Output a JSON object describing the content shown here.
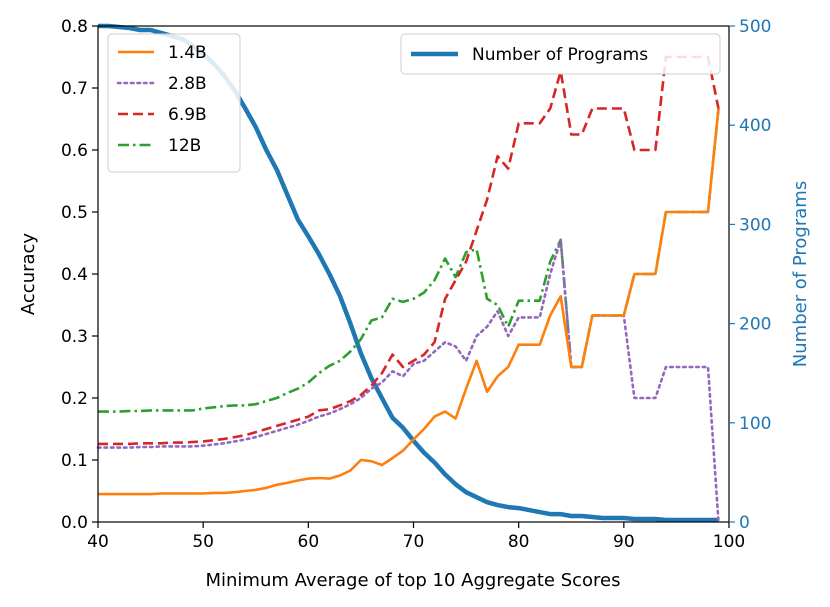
{
  "chart_data": {
    "type": "line",
    "xlabel": "Minimum Average of top 10 Aggregate Scores",
    "ylabel": "Accuracy",
    "y2label": "Number of Programs",
    "xlim": [
      40,
      100
    ],
    "ylim": [
      0,
      0.8
    ],
    "y2lim": [
      0,
      500
    ],
    "xticks": [
      "40",
      "50",
      "60",
      "70",
      "80",
      "90",
      "100"
    ],
    "yticks": [
      "0.0",
      "0.1",
      "0.2",
      "0.3",
      "0.4",
      "0.5",
      "0.6",
      "0.7",
      "0.8"
    ],
    "y2ticks": [
      "0",
      "100",
      "200",
      "300",
      "400",
      "500"
    ],
    "grid": false,
    "legend_left_placement": "top-left",
    "legend_right_placement": "top-right",
    "colors": {
      "s1_4b": "#ff7f0e",
      "s2_8b": "#9467bd",
      "s6_9b": "#d62728",
      "s12b": "#2ca02c",
      "programs": "#1f77b4",
      "right_axis": "#1f77b4"
    },
    "series": [
      {
        "name": "1.4B",
        "key": "s1_4b",
        "axis": "left",
        "style": "solid",
        "x": [
          40,
          41,
          42,
          43,
          44,
          45,
          46,
          47,
          48,
          49,
          50,
          51,
          52,
          53,
          54,
          55,
          56,
          57,
          58,
          59,
          60,
          61,
          62,
          63,
          64,
          65,
          66,
          67,
          68,
          69,
          70,
          71,
          72,
          73,
          74,
          75,
          76,
          77,
          78,
          79,
          80,
          81,
          82,
          83,
          84,
          85,
          86,
          87,
          88,
          89,
          90,
          91,
          92,
          93,
          94,
          95,
          96,
          97,
          98,
          99
        ],
        "values": [
          0.045,
          0.045,
          0.045,
          0.045,
          0.045,
          0.045,
          0.046,
          0.046,
          0.046,
          0.046,
          0.046,
          0.047,
          0.047,
          0.048,
          0.05,
          0.052,
          0.055,
          0.06,
          0.063,
          0.067,
          0.07,
          0.071,
          0.07,
          0.075,
          0.083,
          0.1,
          0.098,
          0.092,
          0.103,
          0.115,
          0.133,
          0.15,
          0.17,
          0.178,
          0.167,
          0.215,
          0.26,
          0.21,
          0.235,
          0.25,
          0.286,
          0.286,
          0.286,
          0.333,
          0.364,
          0.25,
          0.25,
          0.333,
          0.333,
          0.333,
          0.333,
          0.4,
          0.4,
          0.4,
          0.5,
          0.5,
          0.5,
          0.5,
          0.5,
          0.667
        ]
      },
      {
        "name": "2.8B",
        "key": "s2_8b",
        "axis": "left",
        "style": "dotted",
        "x": [
          40,
          41,
          42,
          43,
          44,
          45,
          46,
          47,
          48,
          49,
          50,
          51,
          52,
          53,
          54,
          55,
          56,
          57,
          58,
          59,
          60,
          61,
          62,
          63,
          64,
          65,
          66,
          67,
          68,
          69,
          70,
          71,
          72,
          73,
          74,
          75,
          76,
          77,
          78,
          79,
          80,
          81,
          82,
          83,
          84,
          85,
          86,
          87,
          88,
          89,
          90,
          91,
          92,
          93,
          94,
          95,
          96,
          97,
          98,
          99
        ],
        "values": [
          0.12,
          0.12,
          0.12,
          0.12,
          0.121,
          0.121,
          0.122,
          0.122,
          0.122,
          0.122,
          0.123,
          0.125,
          0.127,
          0.13,
          0.133,
          0.137,
          0.142,
          0.147,
          0.152,
          0.157,
          0.163,
          0.17,
          0.175,
          0.182,
          0.19,
          0.2,
          0.215,
          0.225,
          0.243,
          0.235,
          0.255,
          0.26,
          0.275,
          0.29,
          0.283,
          0.26,
          0.3,
          0.315,
          0.34,
          0.3,
          0.33,
          0.33,
          0.33,
          0.4,
          0.455,
          0.25,
          0.25,
          0.333,
          0.333,
          0.333,
          0.333,
          0.2,
          0.2,
          0.2,
          0.25,
          0.25,
          0.25,
          0.25,
          0.25,
          0.0
        ]
      },
      {
        "name": "6.9B",
        "key": "s6_9b",
        "axis": "left",
        "style": "dashed",
        "x": [
          40,
          41,
          42,
          43,
          44,
          45,
          46,
          47,
          48,
          49,
          50,
          51,
          52,
          53,
          54,
          55,
          56,
          57,
          58,
          59,
          60,
          61,
          62,
          63,
          64,
          65,
          66,
          67,
          68,
          69,
          70,
          71,
          72,
          73,
          74,
          75,
          76,
          77,
          78,
          79,
          80,
          81,
          82,
          83,
          84,
          85,
          86,
          87,
          88,
          89,
          90,
          91,
          92,
          93,
          94,
          95,
          96,
          97,
          98,
          99
        ],
        "values": [
          0.126,
          0.126,
          0.126,
          0.126,
          0.127,
          0.127,
          0.127,
          0.128,
          0.128,
          0.129,
          0.13,
          0.132,
          0.134,
          0.137,
          0.14,
          0.145,
          0.15,
          0.155,
          0.16,
          0.165,
          0.17,
          0.18,
          0.182,
          0.188,
          0.195,
          0.205,
          0.22,
          0.24,
          0.27,
          0.25,
          0.26,
          0.27,
          0.29,
          0.36,
          0.39,
          0.42,
          0.47,
          0.52,
          0.59,
          0.57,
          0.643,
          0.643,
          0.643,
          0.667,
          0.727,
          0.625,
          0.625,
          0.667,
          0.667,
          0.667,
          0.667,
          0.6,
          0.6,
          0.6,
          0.75,
          0.75,
          0.75,
          0.75,
          0.75,
          0.667
        ]
      },
      {
        "name": "12B",
        "key": "s12b",
        "axis": "left",
        "style": "dashdot",
        "x": [
          40,
          41,
          42,
          43,
          44,
          45,
          46,
          47,
          48,
          49,
          50,
          51,
          52,
          53,
          54,
          55,
          56,
          57,
          58,
          59,
          60,
          61,
          62,
          63,
          64,
          65,
          66,
          67,
          68,
          69,
          70,
          71,
          72,
          73,
          74,
          75,
          76,
          77,
          78,
          79,
          80,
          81,
          82,
          83,
          84,
          85,
          86,
          87,
          88,
          89,
          90,
          91,
          92,
          93,
          94,
          95,
          96,
          97,
          98,
          99
        ],
        "values": [
          0.178,
          0.178,
          0.178,
          0.179,
          0.179,
          0.18,
          0.18,
          0.18,
          0.18,
          0.18,
          0.183,
          0.185,
          0.187,
          0.188,
          0.188,
          0.19,
          0.195,
          0.2,
          0.208,
          0.215,
          0.225,
          0.24,
          0.252,
          0.26,
          0.275,
          0.295,
          0.325,
          0.33,
          0.36,
          0.355,
          0.36,
          0.37,
          0.39,
          0.425,
          0.395,
          0.435,
          0.44,
          0.36,
          0.35,
          0.315,
          0.357,
          0.357,
          0.357,
          0.42,
          0.455,
          0.25,
          0.25,
          0.333,
          0.333,
          0.333,
          0.333,
          0.4,
          0.4,
          0.4,
          0.5,
          0.5,
          0.5,
          0.5,
          0.5,
          0.667
        ]
      },
      {
        "name": "Number of Programs",
        "key": "programs",
        "axis": "right",
        "style": "solid-thick",
        "x": [
          40,
          41,
          42,
          43,
          44,
          45,
          46,
          47,
          48,
          49,
          50,
          51,
          52,
          53,
          54,
          55,
          56,
          57,
          58,
          59,
          60,
          61,
          62,
          63,
          64,
          65,
          66,
          67,
          68,
          69,
          70,
          71,
          72,
          73,
          74,
          75,
          76,
          77,
          78,
          79,
          80,
          81,
          82,
          83,
          84,
          85,
          86,
          87,
          88,
          89,
          90,
          91,
          92,
          93,
          94,
          95,
          96,
          97,
          98,
          99
        ],
        "values": [
          500,
          500,
          499,
          498,
          496,
          496,
          493,
          490,
          487,
          480,
          472,
          462,
          450,
          435,
          417,
          398,
          375,
          355,
          330,
          305,
          288,
          270,
          250,
          228,
          200,
          170,
          145,
          125,
          105,
          95,
          82,
          70,
          60,
          48,
          38,
          30,
          25,
          20,
          17,
          15,
          14,
          12,
          10,
          8,
          8,
          6,
          6,
          5,
          4,
          4,
          4,
          3,
          3,
          3,
          2,
          2,
          2,
          2,
          2,
          2
        ]
      }
    ]
  }
}
